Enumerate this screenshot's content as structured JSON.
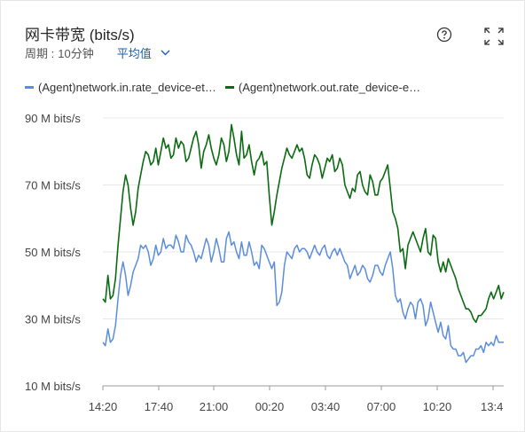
{
  "header": {
    "title": "网卡带宽 (bits/s)",
    "period_label": "周期 : ",
    "period_value": "10分钟",
    "aggregation": "平均值",
    "help_icon": "question-circle-icon",
    "fullscreen_icon": "expand-icon"
  },
  "legend": [
    {
      "label": "(Agent)network.in.rate_device-et…",
      "color": "#5b8ddc"
    },
    {
      "label": "(Agent)network.out.rate_device-e…",
      "color": "#0b6b12"
    }
  ],
  "chart_data": {
    "type": "line",
    "title": "网卡带宽 (bits/s)",
    "x_tick_labels": [
      "14:20",
      "17:40",
      "21:00",
      "00:20",
      "03:40",
      "07:00",
      "10:20",
      "13:4"
    ],
    "y_tick_labels": [
      "90 M bits/s",
      "70 M bits/s",
      "50 M bits/s",
      "30 M bits/s",
      "10 M bits/s"
    ],
    "y_ticks": [
      90,
      70,
      50,
      30,
      10
    ],
    "ylim": [
      10,
      90
    ],
    "xlabel": "",
    "ylabel": "",
    "grid": true,
    "legend_position": "top",
    "series": [
      {
        "name": "(Agent)network.in.rate_device-et…",
        "color": "#5b8ddc",
        "values": [
          23,
          22,
          27,
          23,
          24,
          28,
          36,
          43,
          47,
          43,
          37,
          40,
          44,
          46,
          48,
          52,
          51,
          52,
          50,
          46,
          48,
          52,
          49,
          50,
          54,
          51,
          52,
          52,
          51,
          55,
          53,
          50,
          50,
          55,
          53,
          52,
          50,
          47,
          49,
          48,
          51,
          54,
          52,
          47,
          50,
          54,
          51,
          47,
          47,
          54,
          56,
          52,
          53,
          50,
          48,
          53,
          49,
          49,
          53,
          50,
          46,
          47,
          45,
          52,
          51,
          49,
          47,
          45,
          47,
          34,
          35,
          38,
          46,
          50,
          49,
          48,
          51,
          52,
          50,
          51,
          51,
          50,
          48,
          50,
          52,
          50,
          49,
          51,
          52,
          49,
          48,
          50,
          51,
          49,
          51,
          49,
          47,
          46,
          42,
          44,
          46,
          43,
          44,
          46,
          45,
          42,
          41,
          43,
          46,
          46,
          44,
          43,
          46,
          48,
          50,
          45,
          37,
          35,
          36,
          32,
          30,
          33,
          35,
          34,
          30,
          35,
          36,
          34,
          28,
          30,
          35,
          32,
          29,
          26,
          29,
          25,
          24,
          28,
          22,
          21,
          21,
          19,
          19,
          20,
          17,
          18,
          19,
          19,
          21,
          21,
          22,
          20,
          23,
          22,
          23,
          22,
          25,
          23,
          23,
          23
        ]
      },
      {
        "name": "(Agent)network.out.rate_device-e…",
        "color": "#0b6b12",
        "values": [
          36,
          35,
          43,
          36,
          37,
          42,
          52,
          60,
          68,
          73,
          70,
          63,
          58,
          62,
          69,
          73,
          77,
          80,
          79,
          76,
          77,
          81,
          76,
          80,
          84,
          81,
          82,
          78,
          79,
          84,
          81,
          83,
          82,
          77,
          78,
          81,
          84,
          86,
          82,
          75,
          80,
          82,
          85,
          81,
          78,
          76,
          79,
          84,
          82,
          77,
          80,
          88,
          84,
          79,
          76,
          86,
          78,
          79,
          82,
          77,
          73,
          77,
          78,
          80,
          76,
          77,
          67,
          58,
          62,
          67,
          71,
          75,
          78,
          81,
          79,
          78,
          80,
          82,
          80,
          81,
          78,
          73,
          72,
          76,
          79,
          78,
          76,
          72,
          75,
          78,
          77,
          79,
          74,
          75,
          78,
          76,
          70,
          68,
          66,
          69,
          68,
          73,
          74,
          70,
          68,
          67,
          73,
          71,
          67,
          67,
          71,
          72,
          74,
          76,
          69,
          62,
          60,
          57,
          50,
          51,
          45,
          52,
          54,
          56,
          54,
          52,
          50,
          54,
          57,
          50,
          49,
          55,
          54,
          47,
          44,
          47,
          44,
          48,
          46,
          44,
          42,
          39,
          37,
          35,
          33,
          33,
          32,
          30,
          29,
          31,
          31,
          32,
          33,
          36,
          38,
          36,
          38,
          40,
          36,
          38
        ]
      }
    ]
  }
}
